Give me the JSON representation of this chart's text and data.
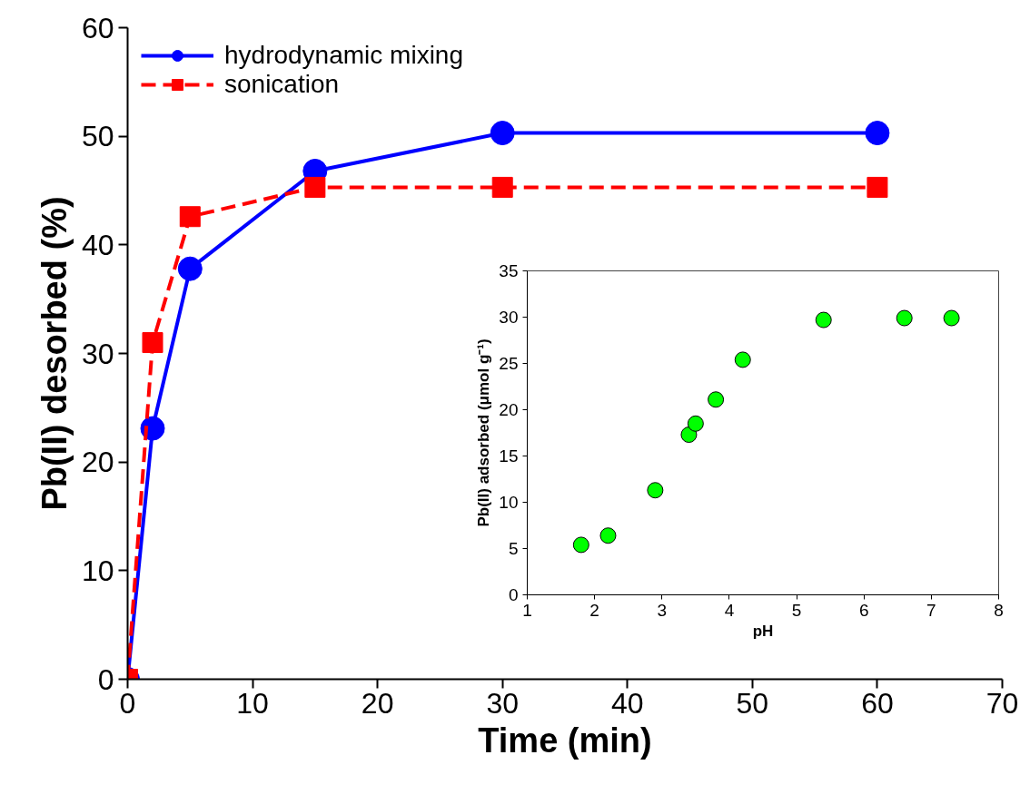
{
  "chart_data": [
    {
      "type": "line",
      "xlabel": "Time (min)",
      "ylabel": "Pb(II) desorbed (%)",
      "x": [
        0,
        2,
        5,
        15,
        30,
        60
      ],
      "xlim": [
        0,
        70
      ],
      "xticks": [
        0,
        10,
        20,
        30,
        40,
        50,
        60,
        70
      ],
      "ylim": [
        0,
        60
      ],
      "yticks": [
        0,
        10,
        20,
        30,
        40,
        50,
        60
      ],
      "grid": false,
      "legend": "top left",
      "series": [
        {
          "name": "hydrodynamic mixing",
          "color": "#0000ff",
          "marker": "circle",
          "line_style": "solid",
          "values": [
            0,
            23.1,
            37.8,
            46.8,
            50.3,
            50.3
          ]
        },
        {
          "name": "sonication",
          "color": "#ff0000",
          "marker": "square",
          "line_style": "dashed",
          "values": [
            0,
            31.0,
            42.6,
            45.3,
            45.3,
            45.3
          ]
        }
      ]
    },
    {
      "type": "scatter",
      "xlabel": "pH",
      "ylabel": "Pb(II) adsorbed (μmol g⁻¹)",
      "x": [
        1.8,
        2.2,
        2.9,
        3.4,
        3.5,
        3.8,
        4.2,
        5.4,
        6.6,
        7.3
      ],
      "xlim": [
        1,
        8
      ],
      "xticks": [
        1,
        2,
        3,
        4,
        5,
        6,
        7,
        8
      ],
      "ylim": [
        0,
        35
      ],
      "yticks": [
        0,
        5,
        10,
        15,
        20,
        25,
        30,
        35
      ],
      "grid": false,
      "marker": "circle",
      "series": [
        {
          "color": "#00ff00",
          "values": [
            5.4,
            6.4,
            11.3,
            17.3,
            18.5,
            21.1,
            25.4,
            29.7,
            29.9,
            29.9
          ]
        }
      ]
    }
  ]
}
